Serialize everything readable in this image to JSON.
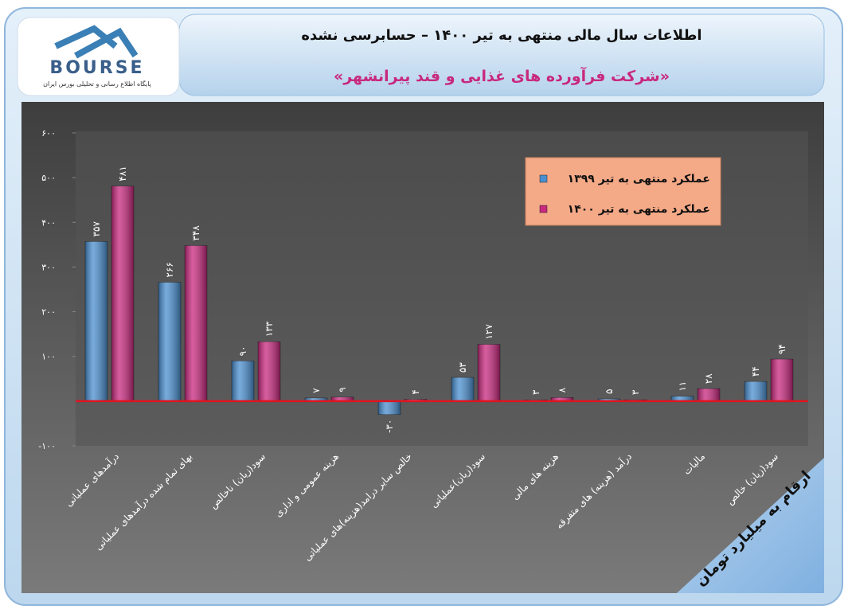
{
  "header": {
    "title": "اطلاعات سال مالی منتهی به تیر ۱۴۰۰ – حسابرسی نشده",
    "subtitle": "«شرکت فرآورده های غذایی و قند پیرانشهر»"
  },
  "logo": {
    "name": "BOURSE",
    "tagline": "پایگاه اطلاع رسانی و تحلیلی بورس ایران"
  },
  "chart_data": {
    "type": "bar",
    "categories": [
      "درآمدهای عملیاتی",
      "بهای تمام شده درآمدهای عملیاتی",
      "سود(زیان) ناخالص",
      "هزینه عمومی و اداری",
      "خالص سایر درامد(هزینه)های عملیاتی",
      "سود(زیان)عملیاتی",
      "هزینه های مالی",
      "درآمد (هزینه) های متفرقه",
      "مالیات",
      "سود(زیان) خالص"
    ],
    "series": [
      {
        "name": "عملکرد منتهی به تیر ۱۳۹۹",
        "color": "#4a8fd0",
        "values": [
          357,
          266,
          90,
          7,
          -30,
          53,
          3,
          5,
          11,
          44
        ],
        "value_labels": [
          "۳۵۷",
          "۲۶۶",
          "۹۰",
          "۷",
          "-۳۰",
          "۵۳",
          "۳",
          "۵",
          "۱۱",
          "۴۴"
        ]
      },
      {
        "name": "عملکرد منتهی به تیر ۱۴۰۰",
        "color": "#c8287e",
        "values": [
          481,
          348,
          133,
          9,
          4,
          127,
          8,
          3,
          28,
          94
        ],
        "value_labels": [
          "۴۸۱",
          "۳۴۸",
          "۱۳۳",
          "۹",
          "۴",
          "۱۲۷",
          "۸",
          "۳",
          "۲۸",
          "۹۴"
        ]
      }
    ],
    "ylim": [
      -100,
      600
    ],
    "yticks": [
      {
        "value": -100,
        "label": "-۱۰۰"
      },
      {
        "value": 100,
        "label": "۱۰۰"
      },
      {
        "value": 200,
        "label": "۲۰۰"
      },
      {
        "value": 300,
        "label": "۳۰۰"
      },
      {
        "value": 400,
        "label": "۴۰۰"
      },
      {
        "value": 500,
        "label": "۵۰۰"
      },
      {
        "value": 600,
        "label": "۶۰۰"
      }
    ],
    "legend": "top-right",
    "annotation": "ارقام به میلیارد تومان"
  }
}
